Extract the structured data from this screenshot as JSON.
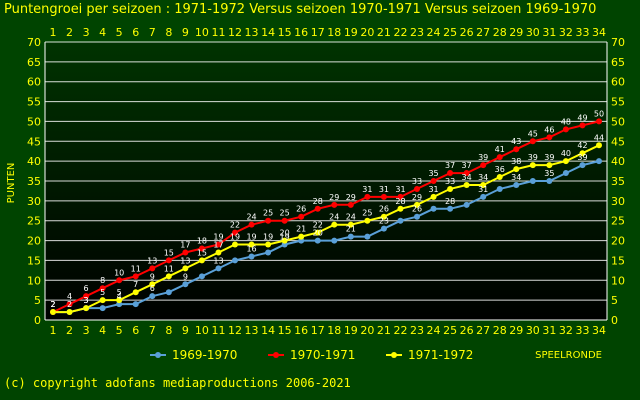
{
  "title": "Puntengroei per seizoen : 1971-1972 Versus seizoen 1970-1971 Versus seizoen 1969-1970",
  "copyright": "(c) copyright adofans mediaproductions 2006-2021",
  "colors": {
    "background": "#004400",
    "plot_bg_top": "#003300",
    "plot_bg_bottom": "#000000",
    "grid": "#ffffff",
    "text": "#ffff00",
    "label": "#ffffff"
  },
  "chart_data": {
    "type": "line",
    "title": "Puntengroei per seizoen : 1971-1972 Versus seizoen 1970-1971 Versus seizoen 1969-1970",
    "xlabel": "SPEELRONDE",
    "ylabel": "PUNTEN",
    "ylim": [
      0,
      70
    ],
    "yticks": [
      0,
      5,
      10,
      15,
      20,
      25,
      30,
      35,
      40,
      45,
      50,
      55,
      60,
      65,
      70
    ],
    "x": [
      1,
      2,
      3,
      4,
      5,
      6,
      7,
      8,
      9,
      10,
      11,
      12,
      13,
      14,
      15,
      16,
      17,
      18,
      19,
      20,
      21,
      22,
      23,
      24,
      25,
      26,
      27,
      28,
      29,
      30,
      31,
      32,
      33,
      34
    ],
    "grid": true,
    "legend_position": "bottom",
    "series": [
      {
        "name": "1969-1970",
        "color": "#5aa0d8",
        "values": [
          2,
          2,
          3,
          3,
          4,
          4,
          6,
          7,
          9,
          11,
          13,
          15,
          16,
          17,
          19,
          20,
          20,
          20,
          21,
          21,
          23,
          25,
          26,
          28,
          28,
          29,
          31,
          33,
          34,
          35,
          35,
          37,
          39,
          40
        ]
      },
      {
        "name": "1970-1971",
        "color": "#ff0000",
        "values": [
          2,
          4,
          6,
          8,
          10,
          11,
          13,
          15,
          17,
          18,
          19,
          22,
          24,
          25,
          25,
          26,
          28,
          29,
          29,
          31,
          31,
          31,
          33,
          35,
          37,
          37,
          39,
          41,
          43,
          45,
          46,
          48,
          49,
          50
        ]
      },
      {
        "name": "1971-1972",
        "color": "#ffff00",
        "values": [
          2,
          2,
          3,
          5,
          5,
          7,
          9,
          11,
          13,
          15,
          17,
          19,
          19,
          19,
          20,
          21,
          22,
          24,
          24,
          25,
          26,
          28,
          29,
          31,
          33,
          34,
          34,
          36,
          38,
          39,
          39,
          40,
          42,
          44
        ]
      }
    ]
  }
}
